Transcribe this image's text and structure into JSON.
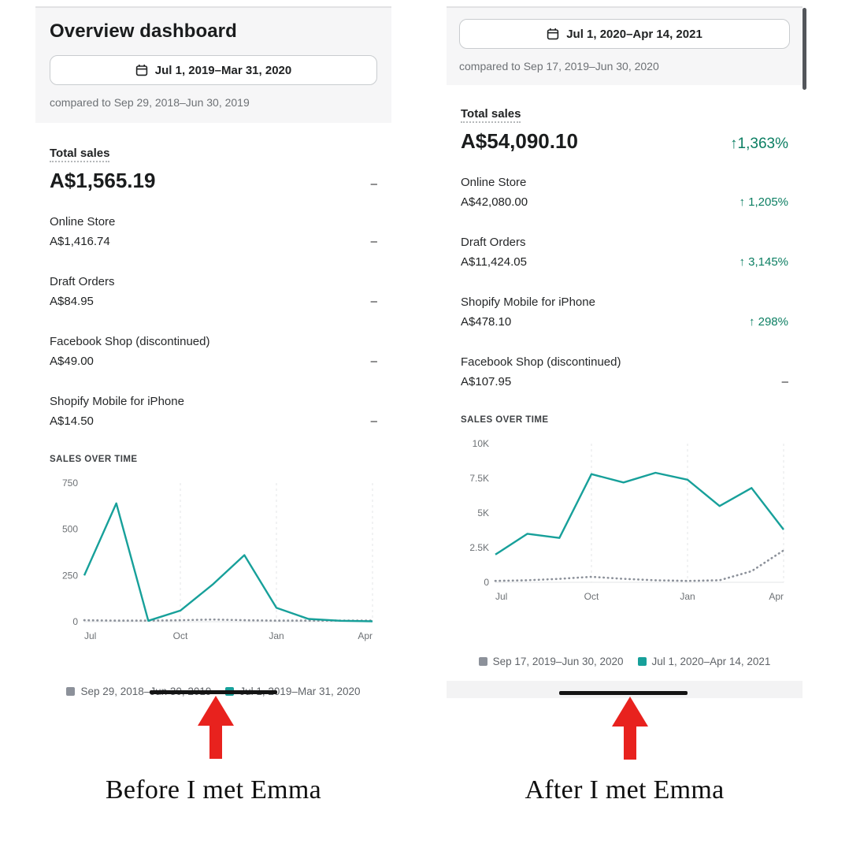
{
  "colors": {
    "positive_green": "#0b7e62",
    "series_teal": "#17a09a",
    "series_gray": "#8c919a",
    "muted_text": "#6d7175",
    "dark_text": "#202223",
    "arrow_red": "#e8221e",
    "annotation_line_black": "#141414",
    "header_gray_bg": "#f6f6f7"
  },
  "left_panel": {
    "title": "Overview dashboard",
    "date_button": "Jul 1, 2019–Mar 31, 2020",
    "compared_to": "compared to Sep 29, 2018–Jun 30, 2019",
    "total_sales": {
      "label": "Total sales",
      "value": "A$1,565.19",
      "delta": "–"
    },
    "channels": [
      {
        "name": "Online Store",
        "value": "A$1,416.74",
        "delta": "–"
      },
      {
        "name": "Draft Orders",
        "value": "A$84.95",
        "delta": "–"
      },
      {
        "name": "Facebook Shop (discontinued)",
        "value": "A$49.00",
        "delta": "–"
      },
      {
        "name": "Shopify Mobile for iPhone",
        "value": "A$14.50",
        "delta": "–"
      }
    ],
    "chart_heading": "SALES OVER TIME",
    "legend": [
      {
        "label": "Sep 29, 2018–Jun 30, 2019",
        "color": "#8c919a"
      },
      {
        "label": "Jul 1, 2019–Mar 31, 2020",
        "color": "#17a09a"
      }
    ],
    "caption": "Before I met Emma"
  },
  "right_panel": {
    "date_button": "Jul 1, 2020–Apr 14, 2021",
    "compared_to": "compared to Sep 17, 2019–Jun 30, 2020",
    "total_sales": {
      "label": "Total sales",
      "value": "A$54,090.10",
      "delta": "↑1,363%"
    },
    "channels": [
      {
        "name": "Online Store",
        "value": "A$42,080.00",
        "delta": "↑ 1,205%"
      },
      {
        "name": "Draft Orders",
        "value": "A$11,424.05",
        "delta": "↑ 3,145%"
      },
      {
        "name": "Shopify Mobile for iPhone",
        "value": "A$478.10",
        "delta": "↑ 298%"
      },
      {
        "name": "Facebook Shop (discontinued)",
        "value": "A$107.95",
        "delta": "–"
      }
    ],
    "chart_heading": "SALES OVER TIME",
    "legend": [
      {
        "label": "Sep 17, 2019–Jun 30, 2020",
        "color": "#8c919a"
      },
      {
        "label": "Jul 1, 2020–Apr 14, 2021",
        "color": "#17a09a"
      }
    ],
    "caption": "After I met Emma"
  },
  "chart_data": [
    {
      "id": "before-chart",
      "type": "line",
      "title": "SALES OVER TIME",
      "x": [
        "Jul",
        "Aug",
        "Sep",
        "Oct",
        "Nov",
        "Dec",
        "Jan",
        "Feb",
        "Mar",
        "Apr"
      ],
      "x_ticks": [
        "Jul",
        "Oct",
        "Jan",
        "Apr"
      ],
      "x_tick_indices": [
        0,
        3,
        6,
        9
      ],
      "ylim": [
        0,
        750
      ],
      "y_ticks": [
        0,
        250,
        500,
        750
      ],
      "y_tick_labels": [
        "0",
        "250",
        "500",
        "750"
      ],
      "grid": "vertical-dashed",
      "legend_position": "bottom",
      "series": [
        {
          "name": "Jul 1, 2019–Mar 31, 2020",
          "color": "#17a09a",
          "style": "solid",
          "values": [
            250,
            640,
            5,
            60,
            200,
            360,
            75,
            15,
            5,
            2
          ]
        },
        {
          "name": "Sep 29, 2018–Jun 30, 2019",
          "color": "#8c919a",
          "style": "dotted",
          "values": [
            8,
            6,
            6,
            8,
            12,
            8,
            6,
            6,
            6,
            6
          ]
        }
      ]
    },
    {
      "id": "after-chart",
      "type": "line",
      "title": "SALES OVER TIME",
      "x": [
        "Jul",
        "Aug",
        "Sep",
        "Oct",
        "Nov",
        "Dec",
        "Jan",
        "Feb",
        "Mar",
        "Apr"
      ],
      "x_ticks": [
        "Jul",
        "Oct",
        "Jan",
        "Apr"
      ],
      "x_tick_indices": [
        0,
        3,
        6,
        9
      ],
      "ylim": [
        0,
        10000
      ],
      "y_ticks": [
        0,
        2500,
        5000,
        7500,
        10000
      ],
      "y_tick_labels": [
        "0",
        "2.5K",
        "5K",
        "7.5K",
        "10K"
      ],
      "grid": "vertical-dashed",
      "legend_position": "bottom",
      "series": [
        {
          "name": "Jul 1, 2020–Apr 14, 2021",
          "color": "#17a09a",
          "style": "solid",
          "values": [
            2000,
            3500,
            3200,
            7800,
            7200,
            7900,
            7400,
            5500,
            6800,
            3800
          ]
        },
        {
          "name": "Sep 17, 2019–Jun 30, 2020",
          "color": "#8c919a",
          "style": "dotted",
          "values": [
            100,
            150,
            250,
            400,
            250,
            150,
            100,
            150,
            800,
            2300
          ]
        }
      ]
    }
  ]
}
